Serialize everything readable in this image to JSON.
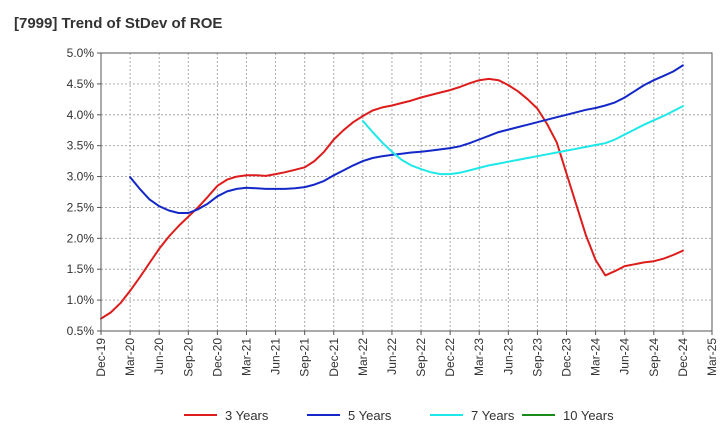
{
  "chart_data": {
    "type": "line",
    "title": "[7999]  Trend of StDev of ROE",
    "xlabel": "",
    "ylabel": "",
    "x_ticks": [
      "Dec-19",
      "Mar-20",
      "Jun-20",
      "Sep-20",
      "Dec-20",
      "Mar-21",
      "Jun-21",
      "Sep-21",
      "Dec-21",
      "Mar-22",
      "Jun-22",
      "Sep-22",
      "Dec-22",
      "Mar-23",
      "Jun-23",
      "Sep-23",
      "Dec-23",
      "Mar-24",
      "Jun-24",
      "Sep-24",
      "Dec-24",
      "Mar-25"
    ],
    "y_ticks": [
      "0.5%",
      "1.0%",
      "1.5%",
      "2.0%",
      "2.5%",
      "3.0%",
      "3.5%",
      "4.0%",
      "4.5%",
      "5.0%"
    ],
    "ylim": [
      0.5,
      5.0
    ],
    "y_unit": "%",
    "grid": true,
    "legend_position": "bottom",
    "series": [
      {
        "name": "3 Years",
        "color": "#dd1c1c",
        "x": [
          "Dec-19",
          "Jan-20",
          "Feb-20",
          "Mar-20",
          "Apr-20",
          "May-20",
          "Jun-20",
          "Jul-20",
          "Aug-20",
          "Sep-20",
          "Oct-20",
          "Nov-20",
          "Dec-20",
          "Jan-21",
          "Feb-21",
          "Mar-21",
          "Apr-21",
          "May-21",
          "Jun-21",
          "Jul-21",
          "Aug-21",
          "Sep-21",
          "Oct-21",
          "Nov-21",
          "Dec-21",
          "Jan-22",
          "Feb-22",
          "Mar-22",
          "Apr-22",
          "May-22",
          "Jun-22",
          "Jul-22",
          "Aug-22",
          "Sep-22",
          "Oct-22",
          "Nov-22",
          "Dec-22",
          "Jan-23",
          "Feb-23",
          "Mar-23",
          "Apr-23",
          "May-23",
          "Jun-23",
          "Jul-23",
          "Aug-23",
          "Sep-23",
          "Oct-23",
          "Nov-23",
          "Dec-23",
          "Jan-24",
          "Feb-24",
          "Mar-24",
          "Apr-24",
          "May-24",
          "Jun-24",
          "Jul-24",
          "Aug-24",
          "Sep-24",
          "Oct-24",
          "Nov-24",
          "Dec-24"
        ],
        "values": [
          0.7,
          0.8,
          0.95,
          1.15,
          1.37,
          1.6,
          1.83,
          2.03,
          2.2,
          2.35,
          2.5,
          2.67,
          2.85,
          2.95,
          3.0,
          3.02,
          3.02,
          3.01,
          3.04,
          3.07,
          3.11,
          3.15,
          3.25,
          3.4,
          3.6,
          3.75,
          3.88,
          3.98,
          4.07,
          4.12,
          4.15,
          4.19,
          4.23,
          4.28,
          4.32,
          4.36,
          4.4,
          4.45,
          4.51,
          4.56,
          4.58,
          4.56,
          4.48,
          4.38,
          4.25,
          4.1,
          3.85,
          3.55,
          3.05,
          2.55,
          2.05,
          1.65,
          1.4,
          1.47,
          1.55,
          1.58,
          1.61,
          1.63,
          1.67,
          1.73,
          1.8
        ]
      },
      {
        "name": "5 Years",
        "color": "#1428c8",
        "x": [
          "Mar-20",
          "Apr-20",
          "May-20",
          "Jun-20",
          "Jul-20",
          "Aug-20",
          "Sep-20",
          "Oct-20",
          "Nov-20",
          "Dec-20",
          "Jan-21",
          "Feb-21",
          "Mar-21",
          "Apr-21",
          "May-21",
          "Jun-21",
          "Jul-21",
          "Aug-21",
          "Sep-21",
          "Oct-21",
          "Nov-21",
          "Dec-21",
          "Jan-22",
          "Feb-22",
          "Mar-22",
          "Apr-22",
          "May-22",
          "Jun-22",
          "Jul-22",
          "Aug-22",
          "Sep-22",
          "Oct-22",
          "Nov-22",
          "Dec-22",
          "Jan-23",
          "Feb-23",
          "Mar-23",
          "Apr-23",
          "May-23",
          "Jun-23",
          "Jul-23",
          "Aug-23",
          "Sep-23",
          "Oct-23",
          "Nov-23",
          "Dec-23",
          "Jan-24",
          "Feb-24",
          "Mar-24",
          "Apr-24",
          "May-24",
          "Jun-24",
          "Jul-24",
          "Aug-24",
          "Sep-24",
          "Oct-24",
          "Nov-24",
          "Dec-24"
        ],
        "values": [
          2.99,
          2.8,
          2.63,
          2.52,
          2.45,
          2.41,
          2.41,
          2.47,
          2.56,
          2.68,
          2.76,
          2.8,
          2.82,
          2.81,
          2.8,
          2.8,
          2.8,
          2.81,
          2.83,
          2.87,
          2.93,
          3.02,
          3.1,
          3.18,
          3.25,
          3.3,
          3.33,
          3.35,
          3.37,
          3.39,
          3.4,
          3.42,
          3.44,
          3.46,
          3.49,
          3.54,
          3.6,
          3.66,
          3.72,
          3.76,
          3.8,
          3.84,
          3.88,
          3.92,
          3.96,
          4.0,
          4.04,
          4.08,
          4.11,
          4.15,
          4.2,
          4.28,
          4.38,
          4.48,
          4.56,
          4.63,
          4.7,
          4.8
        ]
      },
      {
        "name": "7 Years",
        "color": "#1ee8e8",
        "x": [
          "Mar-22",
          "Apr-22",
          "May-22",
          "Jun-22",
          "Jul-22",
          "Aug-22",
          "Sep-22",
          "Oct-22",
          "Nov-22",
          "Dec-22",
          "Jan-23",
          "Feb-23",
          "Mar-23",
          "Apr-23",
          "May-23",
          "Jun-23",
          "Jul-23",
          "Aug-23",
          "Sep-23",
          "Oct-23",
          "Nov-23",
          "Dec-23",
          "Jan-24",
          "Feb-24",
          "Mar-24",
          "Apr-24",
          "May-24",
          "Jun-24",
          "Jul-24",
          "Aug-24",
          "Sep-24",
          "Oct-24",
          "Nov-24",
          "Dec-24"
        ],
        "values": [
          3.9,
          3.72,
          3.55,
          3.4,
          3.27,
          3.18,
          3.12,
          3.07,
          3.04,
          3.04,
          3.06,
          3.1,
          3.14,
          3.18,
          3.21,
          3.24,
          3.27,
          3.3,
          3.33,
          3.36,
          3.39,
          3.42,
          3.45,
          3.48,
          3.51,
          3.54,
          3.6,
          3.68,
          3.76,
          3.84,
          3.91,
          3.98,
          4.06,
          4.14
        ]
      },
      {
        "name": "10 Years",
        "color": "#1a8a1a",
        "x": [],
        "values": []
      }
    ]
  }
}
